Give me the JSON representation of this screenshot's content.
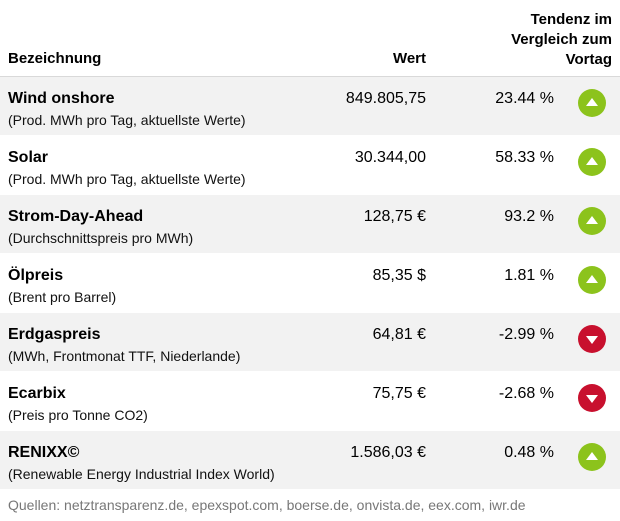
{
  "header": {
    "name": "Bezeichnung",
    "value": "Wert",
    "trend_lines": [
      "Tendenz im",
      "Vergleich zum",
      "Vortag"
    ]
  },
  "rows": [
    {
      "name": "Wind onshore",
      "sub": "(Prod. MWh pro Tag, aktuellste Werte)",
      "value": "849.805,75",
      "pct": "23.44 %",
      "trend": "up",
      "icon": "arrow-up-icon"
    },
    {
      "name": "Solar",
      "sub": "(Prod. MWh pro Tag, aktuellste Werte)",
      "value": "30.344,00",
      "pct": "58.33 %",
      "trend": "up",
      "icon": "arrow-up-icon"
    },
    {
      "name": "Strom-Day-Ahead",
      "sub": "(Durchschnittspreis pro MWh)",
      "value": "128,75 €",
      "pct": "93.2 %",
      "trend": "up",
      "icon": "arrow-up-icon"
    },
    {
      "name": "Ölpreis",
      "sub": "(Brent pro Barrel)",
      "value": "85,35 $",
      "pct": "1.81 %",
      "trend": "up",
      "icon": "arrow-up-icon"
    },
    {
      "name": "Erdgaspreis",
      "sub": "(MWh, Frontmonat TTF, Niederlande)",
      "value": "64,81 €",
      "pct": "-2.99 %",
      "trend": "down",
      "icon": "arrow-down-icon"
    },
    {
      "name": "Ecarbix",
      "sub": "(Preis pro Tonne CO2)",
      "value": "75,75 €",
      "pct": "-2.68 %",
      "trend": "down",
      "icon": "arrow-down-icon"
    },
    {
      "name": "RENIXX©",
      "sub": "(Renewable Energy Industrial Index World)",
      "value": "1.586,03 €",
      "pct": "0.48 %",
      "trend": "up",
      "icon": "arrow-up-icon"
    }
  ],
  "colors": {
    "up": "#8cc31c",
    "down": "#c8102e",
    "shade": "#f2f2f2"
  },
  "footer": "Quellen: netztransparenz.de, epexspot.com, boerse.de, onvista.de, eex.com, iwr.de"
}
